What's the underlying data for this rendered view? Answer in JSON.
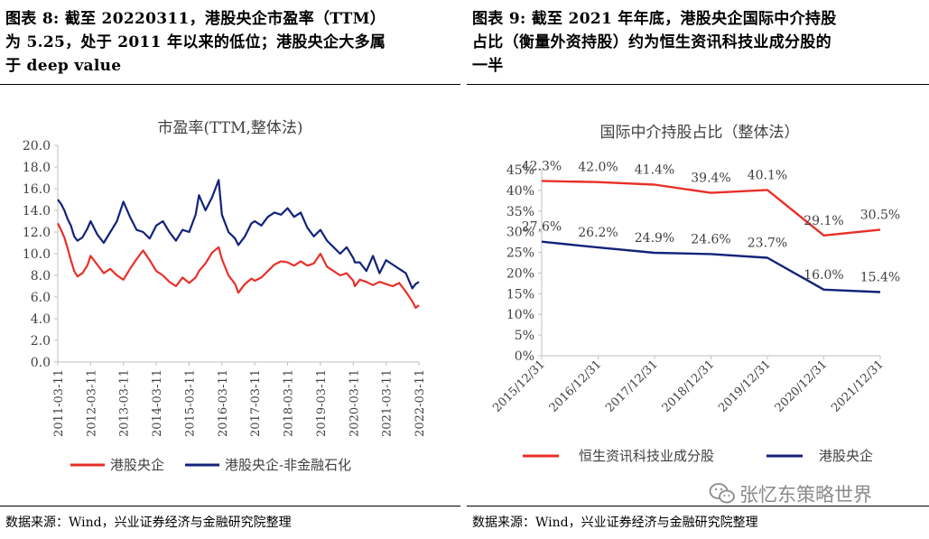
{
  "left": {
    "title_lines": [
      "图表 8: 截至 20220311，港股央企市盈率（TTM）",
      "为 5.25，处于 2011 年以来的低位；港股央企大多属",
      "于 deep value"
    ],
    "source": "数据来源：Wind，兴业证券经济与金融研究院整理"
  },
  "right": {
    "title_lines": [
      "图表 9: 截至 2021 年年底，港股央企国际中介持股",
      "占比（衡量外资持股）约为恒生资讯科技业成分股的",
      "一半"
    ],
    "source": "数据来源：Wind，兴业证券经济与金融研究院整理"
  },
  "watermark": {
    "text": "张忆东策略世界",
    "icon": "wechat-icon"
  },
  "colors": {
    "red": "#e8302a",
    "blue": "#12237a",
    "axis": "#bfbfbf",
    "text": "#404040"
  },
  "chart_data": [
    {
      "type": "line",
      "title": "市盈率(TTM,整体法)",
      "x_ticks": [
        "2011-03-11",
        "2012-03-11",
        "2013-03-11",
        "2014-03-11",
        "2015-03-11",
        "2016-03-11",
        "2017-03-11",
        "2018-03-11",
        "2019-03-11",
        "2020-03-11",
        "2021-03-11",
        "2022-03-11"
      ],
      "ylim": [
        0,
        20
      ],
      "y_ticks": [
        "0.0",
        "2.0",
        "4.0",
        "6.0",
        "8.0",
        "10.0",
        "12.0",
        "14.0",
        "16.0",
        "18.0",
        "20.0"
      ],
      "series": [
        {
          "name": "港股央企",
          "color": "#e8302a",
          "t": [
            0,
            0.1,
            0.2,
            0.3,
            0.4,
            0.5,
            0.6,
            0.75,
            0.9,
            1.0,
            1.2,
            1.4,
            1.6,
            1.8,
            2.0,
            2.2,
            2.4,
            2.6,
            2.8,
            3.0,
            3.2,
            3.4,
            3.6,
            3.8,
            4.0,
            4.2,
            4.3,
            4.5,
            4.7,
            4.9,
            5.0,
            5.2,
            5.4,
            5.5,
            5.7,
            5.9,
            6.0,
            6.2,
            6.4,
            6.6,
            6.8,
            7.0,
            7.2,
            7.4,
            7.6,
            7.8,
            8.0,
            8.2,
            8.4,
            8.6,
            8.8,
            9.0,
            9.05,
            9.2,
            9.4,
            9.6,
            9.8,
            10.0,
            10.2,
            10.4,
            10.6,
            10.8,
            10.9,
            11.0
          ],
          "v": [
            12.8,
            12.2,
            11.5,
            10.5,
            9.4,
            8.4,
            7.9,
            8.2,
            8.9,
            9.8,
            9.0,
            8.2,
            8.6,
            8.0,
            7.6,
            8.6,
            9.5,
            10.3,
            9.4,
            8.4,
            8.0,
            7.4,
            7.0,
            7.8,
            7.3,
            7.8,
            8.4,
            9.1,
            10.1,
            10.6,
            9.5,
            8.0,
            7.2,
            6.4,
            7.2,
            7.7,
            7.5,
            7.8,
            8.4,
            9.0,
            9.3,
            9.2,
            8.9,
            9.3,
            8.9,
            9.1,
            10.0,
            8.8,
            8.4,
            8.0,
            8.2,
            7.5,
            7.0,
            7.6,
            7.4,
            7.1,
            7.4,
            7.2,
            7.0,
            7.3,
            6.5,
            5.6,
            5.0,
            5.25
          ]
        },
        {
          "name": "港股央企-非金融石化",
          "color": "#12237a",
          "t": [
            0,
            0.1,
            0.2,
            0.3,
            0.4,
            0.5,
            0.6,
            0.75,
            0.9,
            1.0,
            1.2,
            1.4,
            1.6,
            1.8,
            2.0,
            2.2,
            2.4,
            2.6,
            2.8,
            3.0,
            3.2,
            3.4,
            3.6,
            3.8,
            4.0,
            4.2,
            4.3,
            4.5,
            4.7,
            4.9,
            5.0,
            5.2,
            5.4,
            5.5,
            5.7,
            5.9,
            6.0,
            6.2,
            6.4,
            6.6,
            6.8,
            7.0,
            7.2,
            7.4,
            7.6,
            7.8,
            8.0,
            8.2,
            8.4,
            8.6,
            8.8,
            9.0,
            9.05,
            9.2,
            9.4,
            9.6,
            9.8,
            10.0,
            10.2,
            10.4,
            10.6,
            10.8,
            10.9,
            11.0
          ],
          "v": [
            15.0,
            14.6,
            14.0,
            13.2,
            12.6,
            11.6,
            11.2,
            11.5,
            12.3,
            13.0,
            11.8,
            11.0,
            12.0,
            13.0,
            14.8,
            13.4,
            12.2,
            12.0,
            11.4,
            12.6,
            13.0,
            12.0,
            11.2,
            12.2,
            12.0,
            13.6,
            15.4,
            14.0,
            15.2,
            16.8,
            13.6,
            12.0,
            11.4,
            10.8,
            11.6,
            12.8,
            13.0,
            12.6,
            13.4,
            13.8,
            13.6,
            14.2,
            13.4,
            13.8,
            12.4,
            11.6,
            12.2,
            11.2,
            10.6,
            10.0,
            10.6,
            9.6,
            9.2,
            9.2,
            8.4,
            9.8,
            8.2,
            9.4,
            9.0,
            8.6,
            8.2,
            6.8,
            7.2,
            7.4
          ]
        }
      ]
    },
    {
      "type": "line",
      "title": "国际中介持股占比（整体法）",
      "categories": [
        "2015/12/31",
        "2016/12/31",
        "2017/12/31",
        "2018/12/31",
        "2019/12/31",
        "2020/12/31",
        "2021/12/31"
      ],
      "ylim": [
        0,
        45
      ],
      "y_ticks": [
        "0%",
        "5%",
        "10%",
        "15%",
        "20%",
        "25%",
        "30%",
        "35%",
        "40%",
        "45%"
      ],
      "series": [
        {
          "name": "恒生资讯科技业成分股",
          "color": "#e8302a",
          "values": [
            42.3,
            42.0,
            41.4,
            39.4,
            40.1,
            29.1,
            30.5
          ],
          "labels": [
            "42.3%",
            "42.0%",
            "41.4%",
            "39.4%",
            "40.1%",
            "29.1%",
            "30.5%"
          ]
        },
        {
          "name": "港股央企",
          "color": "#12237a",
          "values": [
            27.6,
            26.2,
            24.9,
            24.6,
            23.7,
            16.0,
            15.4
          ],
          "labels": [
            "27.6%",
            "26.2%",
            "24.9%",
            "24.6%",
            "23.7%",
            "16.0%",
            "15.4%"
          ]
        }
      ]
    }
  ]
}
